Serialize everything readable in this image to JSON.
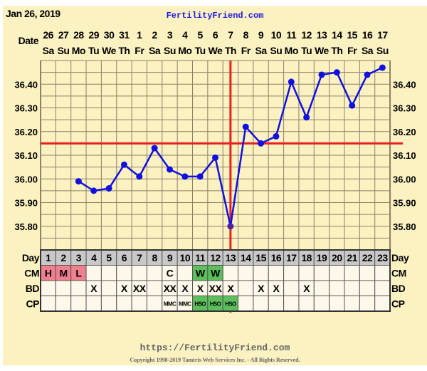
{
  "header": {
    "date": "Jan 26, 2019",
    "site": "FertilityFriend.com",
    "date_label": "Date"
  },
  "footer": {
    "url": "https://FertilityFriend.com",
    "copyright": "Copyright 1998-2019 Tamtris Web Services Inc. - All Rights Reserved."
  },
  "colors": {
    "bg": "#fcf1c1",
    "cell": "#fdf8e9",
    "line": "#1010e0",
    "red": "#e82020",
    "pink": "#f07f90",
    "green": "#5cbf5c",
    "dayrow": "#c8c8c8"
  },
  "chart_data": {
    "type": "line",
    "dates": [
      "26",
      "27",
      "28",
      "29",
      "30",
      "31",
      "1",
      "2",
      "3",
      "4",
      "5",
      "6",
      "7",
      "8",
      "9",
      "10",
      "11",
      "12",
      "13",
      "14",
      "15",
      "16",
      "17"
    ],
    "weekdays": [
      "Sa",
      "Su",
      "Mo",
      "Tu",
      "We",
      "Th",
      "Fr",
      "Sa",
      "Su",
      "Mo",
      "Tu",
      "We",
      "Th",
      "Fr",
      "Sa",
      "Su",
      "Mo",
      "Tu",
      "We",
      "Th",
      "Fr",
      "Sa",
      "Su"
    ],
    "days": [
      1,
      2,
      3,
      4,
      5,
      6,
      7,
      8,
      9,
      10,
      11,
      12,
      13,
      14,
      15,
      16,
      17,
      18,
      19,
      20,
      21,
      22,
      23
    ],
    "temps": [
      null,
      null,
      35.99,
      35.95,
      35.96,
      36.06,
      36.01,
      36.13,
      36.04,
      36.01,
      36.01,
      36.09,
      35.8,
      36.22,
      36.15,
      36.18,
      36.41,
      36.26,
      36.44,
      36.45,
      36.31,
      36.44,
      36.47
    ],
    "ylim": [
      35.7,
      36.5
    ],
    "yticks": [
      "36.40",
      "36.30",
      "36.20",
      "36.10",
      "36.00",
      "35.90",
      "35.80"
    ],
    "coverline": 36.15,
    "ovulation_day": 13,
    "row_labels": {
      "day": "Day",
      "cm": "CM",
      "bd": "BD",
      "cp": "CP"
    },
    "cm": [
      "H",
      "M",
      "L",
      "",
      "",
      "",
      "",
      "",
      "C",
      "",
      "W",
      "W",
      "",
      "",
      "",
      "",
      "",
      "",
      "",
      "",
      "",
      "",
      ""
    ],
    "bd": [
      "",
      "",
      "",
      "X",
      "",
      "X",
      "XX",
      "",
      "XX",
      "X",
      "X",
      "XX",
      "X",
      "",
      "X",
      "X",
      "",
      "X",
      "",
      "",
      "",
      "",
      ""
    ],
    "cp": [
      "",
      "",
      "",
      "",
      "",
      "",
      "",
      "",
      "MMC",
      "MMC",
      "HSO",
      "HSO",
      "HSO",
      "",
      "",
      "",
      "",
      "",
      "",
      "",
      "",
      "",
      ""
    ]
  }
}
